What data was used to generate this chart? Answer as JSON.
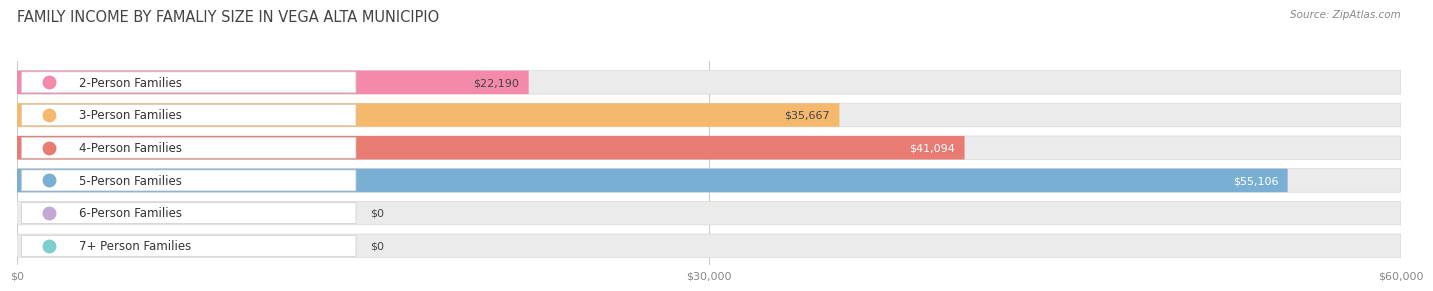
{
  "title": "FAMILY INCOME BY FAMALIY SIZE IN VEGA ALTA MUNICIPIO",
  "source": "Source: ZipAtlas.com",
  "categories": [
    "2-Person Families",
    "3-Person Families",
    "4-Person Families",
    "5-Person Families",
    "6-Person Families",
    "7+ Person Families"
  ],
  "values": [
    22190,
    35667,
    41094,
    55106,
    0,
    0
  ],
  "bar_colors": [
    "#f589aa",
    "#f5b96e",
    "#e87b72",
    "#7aafd4",
    "#c4a8d4",
    "#7ecece"
  ],
  "dot_colors": [
    "#f589aa",
    "#f5b96e",
    "#e87b72",
    "#7aafd4",
    "#c4a8d4",
    "#7ecece"
  ],
  "value_label_colors": [
    "#444444",
    "#444444",
    "#ffffff",
    "#ffffff",
    "#444444",
    "#444444"
  ],
  "xlim": [
    0,
    60000
  ],
  "xticks": [
    0,
    30000,
    60000
  ],
  "xtick_labels": [
    "$0",
    "$30,000",
    "$60,000"
  ],
  "value_labels": [
    "$22,190",
    "$35,667",
    "$41,094",
    "$55,106",
    "$0",
    "$0"
  ],
  "bar_height": 0.72,
  "background_color": "#ffffff",
  "bar_bg_color": "#ebebeb",
  "title_fontsize": 10.5,
  "source_fontsize": 7.5,
  "label_fontsize": 8.5,
  "value_fontsize": 8.0
}
